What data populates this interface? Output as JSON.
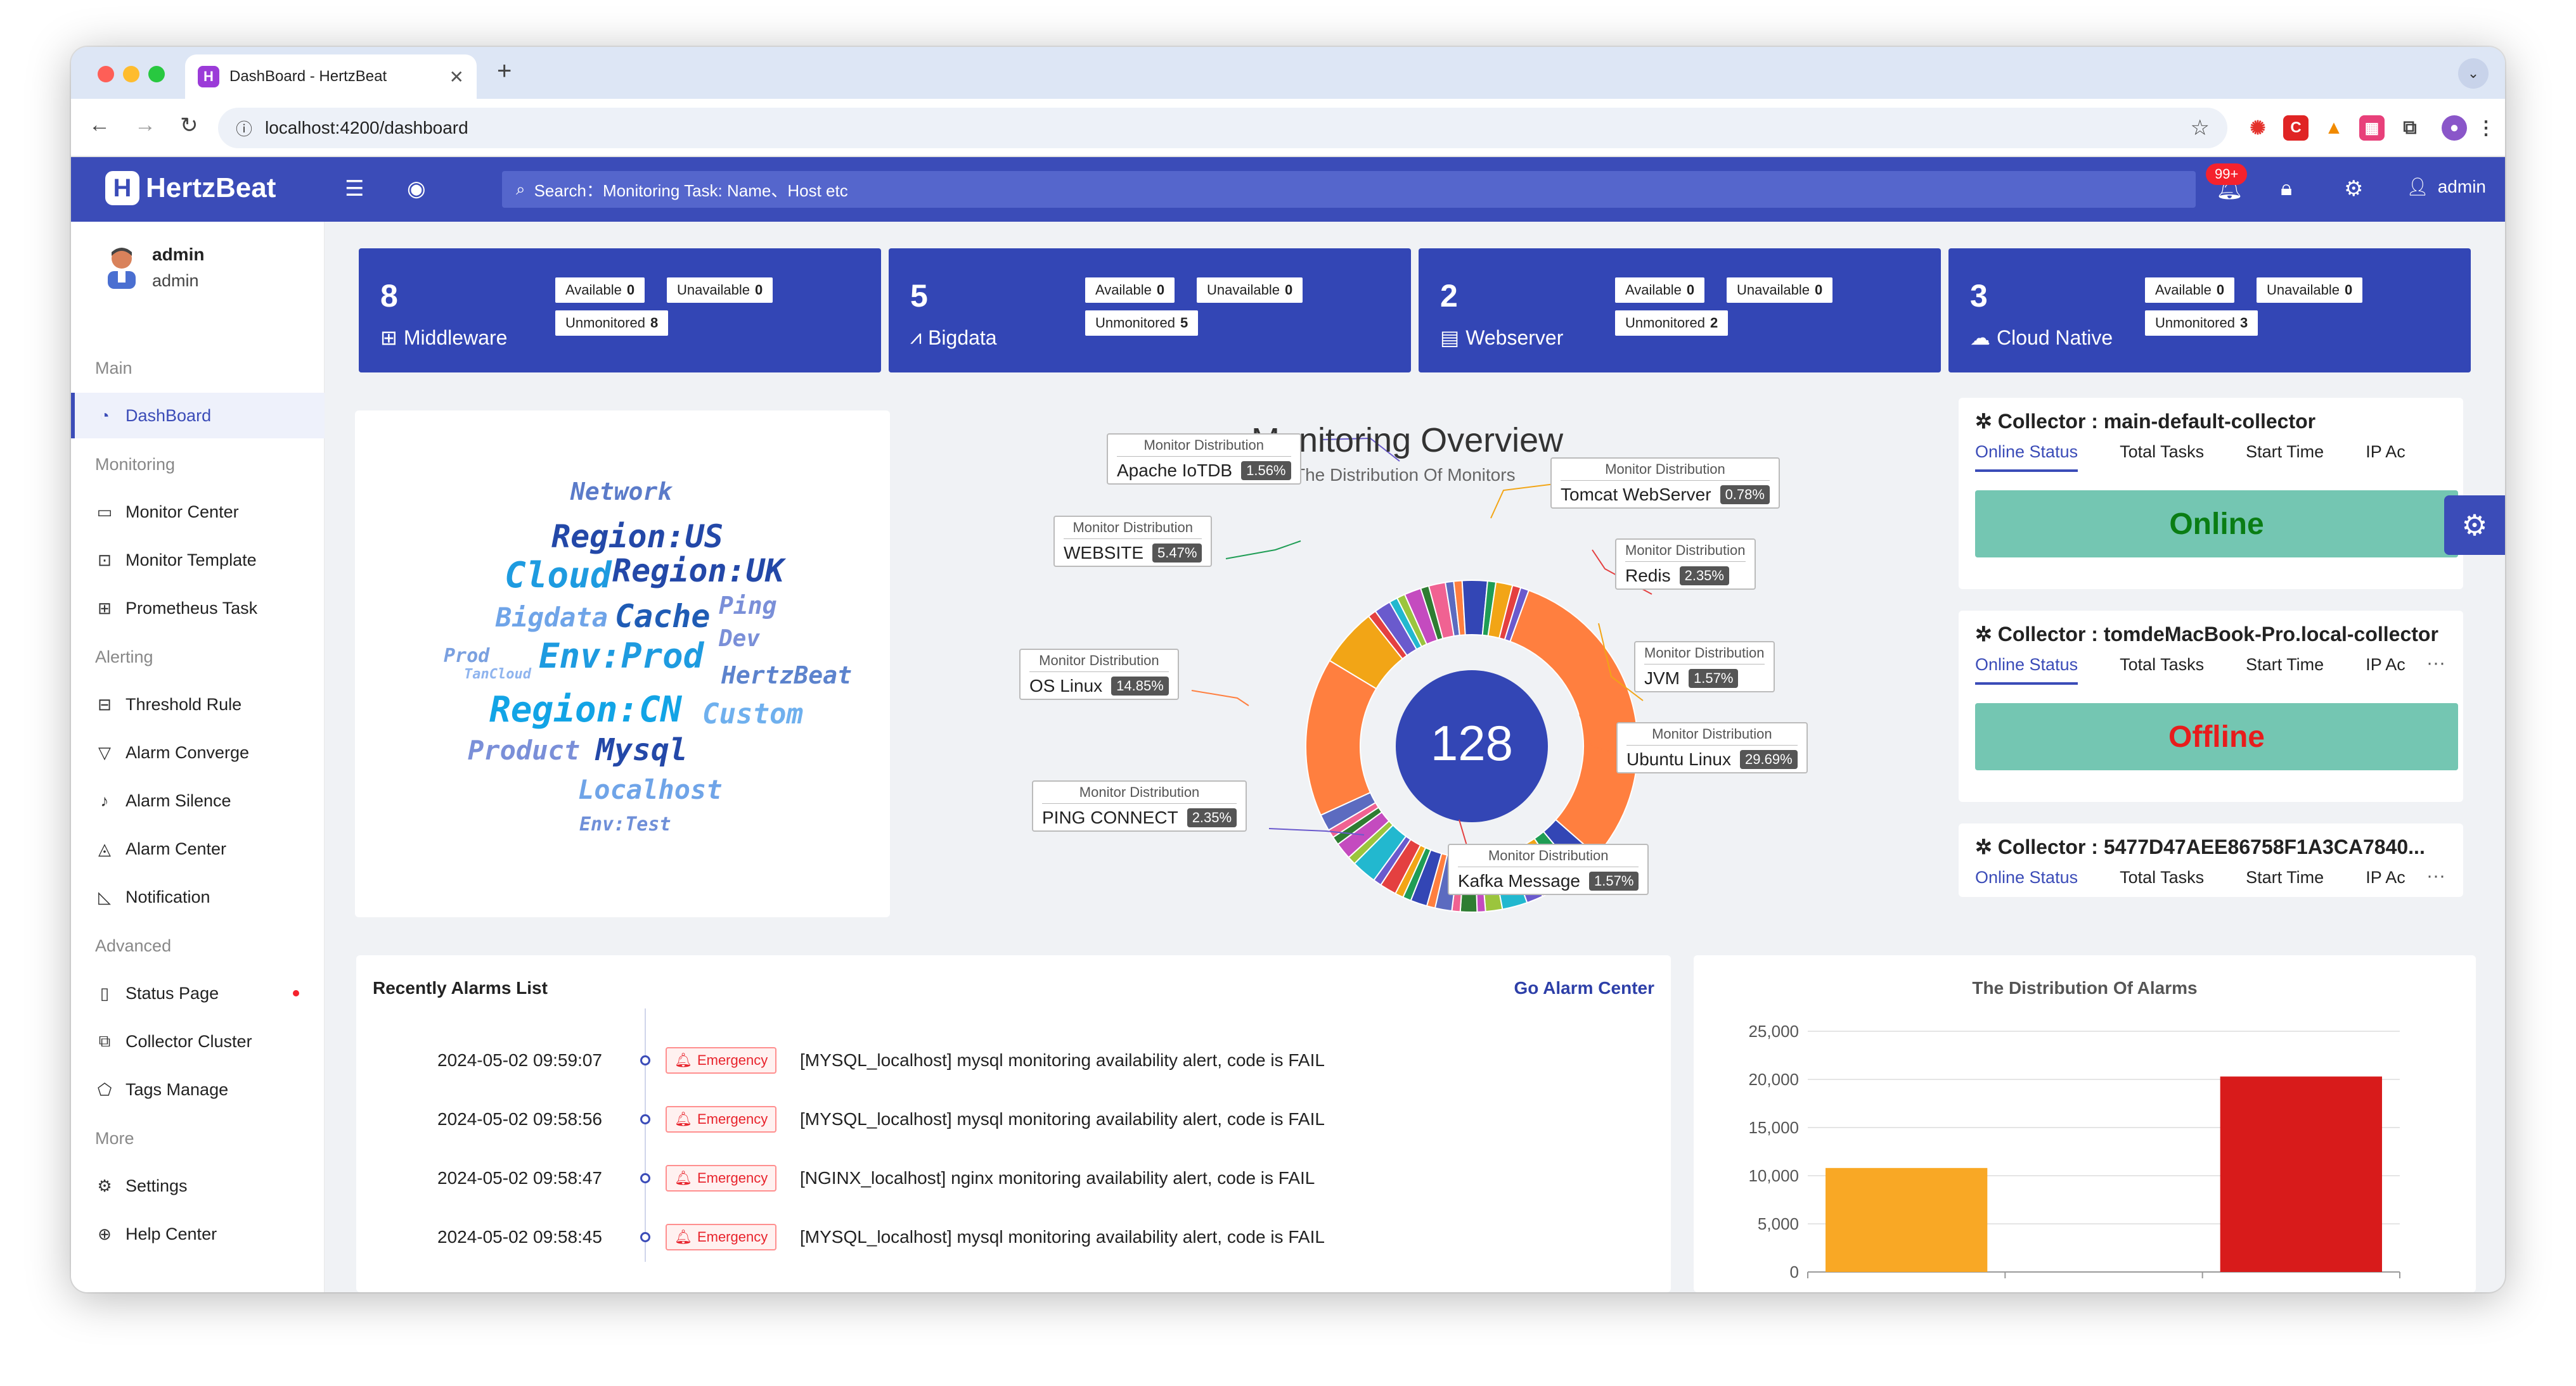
{
  "browser": {
    "tab_title": "DashBoard - HertzBeat",
    "tab_icon": "H",
    "url": "localhost:4200/dashboard"
  },
  "header": {
    "brand": "HertzBeat",
    "search_placeholder": "Search：Monitoring Task: Name、Host etc",
    "notifications_badge": "99+",
    "user": "admin"
  },
  "sidebar": {
    "profile": {
      "name": "admin",
      "role": "admin"
    },
    "sections": {
      "main": "Main",
      "monitoring": "Monitoring",
      "alerting": "Alerting",
      "advanced": "Advanced",
      "more": "More"
    },
    "items": {
      "dashboard": "DashBoard",
      "monitor_center": "Monitor Center",
      "monitor_template": "Monitor Template",
      "prometheus_task": "Prometheus Task",
      "threshold_rule": "Threshold Rule",
      "alarm_converge": "Alarm Converge",
      "alarm_silence": "Alarm Silence",
      "alarm_center": "Alarm Center",
      "notification": "Notification",
      "status_page": "Status Page",
      "collector_cluster": "Collector Cluster",
      "tags_manage": "Tags Manage",
      "settings": "Settings",
      "help_center": "Help Center"
    }
  },
  "category_cards": [
    {
      "count": "8",
      "label": "Middleware",
      "available": "0",
      "unavailable": "0",
      "unmonitored": "8"
    },
    {
      "count": "5",
      "label": "Bigdata",
      "available": "0",
      "unavailable": "0",
      "unmonitored": "5"
    },
    {
      "count": "2",
      "label": "Webserver",
      "available": "0",
      "unavailable": "0",
      "unmonitored": "2"
    },
    {
      "count": "3",
      "label": "Cloud Native",
      "available": "0",
      "unavailable": "0",
      "unmonitored": "3"
    }
  ],
  "card_labels": {
    "available": "Available",
    "unavailable": "Unavailable",
    "unmonitored": "Unmonitored"
  },
  "word_cloud": [
    "Network",
    "Region:US",
    "Cloud",
    "Region:UK",
    "Bigdata",
    "Cache",
    "Ping",
    "Prod",
    "Env:Prod",
    "Dev",
    "TanCloud",
    "HertzBeat",
    "Region:CN",
    "Custom",
    "Product",
    "Mysql",
    "Localhost",
    "Env:Test"
  ],
  "overview": {
    "title": "Monitoring Overview",
    "subtitle": "The Distribution Of Monitors",
    "total": "128",
    "label_title": "Monitor Distribution",
    "labels": [
      {
        "name": "Apache IoTDB",
        "pct": "1.56%"
      },
      {
        "name": "Tomcat WebServer",
        "pct": "0.78%"
      },
      {
        "name": "WEBSITE",
        "pct": "5.47%"
      },
      {
        "name": "Redis",
        "pct": "2.35%"
      },
      {
        "name": "JVM",
        "pct": "1.57%"
      },
      {
        "name": "OS Linux",
        "pct": "14.85%"
      },
      {
        "name": "Ubuntu Linux",
        "pct": "29.69%"
      },
      {
        "name": "PING CONNECT",
        "pct": "2.35%"
      },
      {
        "name": "Kafka Message",
        "pct": "1.57%"
      }
    ]
  },
  "collectors": {
    "tabs": {
      "online": "Online Status",
      "tasks": "Total Tasks",
      "start": "Start Time",
      "ip": "IP Ac"
    },
    "items": [
      {
        "name": "Collector : main-default-collector",
        "status": "Online"
      },
      {
        "name": "Collector : tomdeMacBook-Pro.local-collector",
        "status": "Offline"
      },
      {
        "name": "Collector : 5477D47AEE86758F1A3CA7840...",
        "status": ""
      }
    ]
  },
  "alarms": {
    "title": "Recently Alarms List",
    "link": "Go Alarm Center",
    "rows": [
      {
        "time": "2024-05-02 09:59:07",
        "level": "Emergency",
        "msg": "[MYSQL_localhost] mysql monitoring availability alert, code is FAIL"
      },
      {
        "time": "2024-05-02 09:58:56",
        "level": "Emergency",
        "msg": "[MYSQL_localhost] mysql monitoring availability alert, code is FAIL"
      },
      {
        "time": "2024-05-02 09:58:47",
        "level": "Emergency",
        "msg": "[NGINX_localhost] nginx monitoring availability alert, code is FAIL"
      },
      {
        "time": "2024-05-02 09:58:45",
        "level": "Emergency",
        "msg": "[MYSQL_localhost] mysql monitoring availability alert, code is FAIL"
      }
    ]
  },
  "chart_data": {
    "type": "bar",
    "title": "The Distribution Of Alarms",
    "categories": [
      "",
      "",
      ""
    ],
    "values": [
      10800,
      0,
      20300
    ],
    "colors": [
      "#f9a825",
      "#cccccc",
      "#d81b1b"
    ],
    "ylim": [
      0,
      25000
    ],
    "yticks": [
      "25,000",
      "20,000",
      "15,000",
      "10,000",
      "5,000",
      "0"
    ],
    "grid": true
  }
}
